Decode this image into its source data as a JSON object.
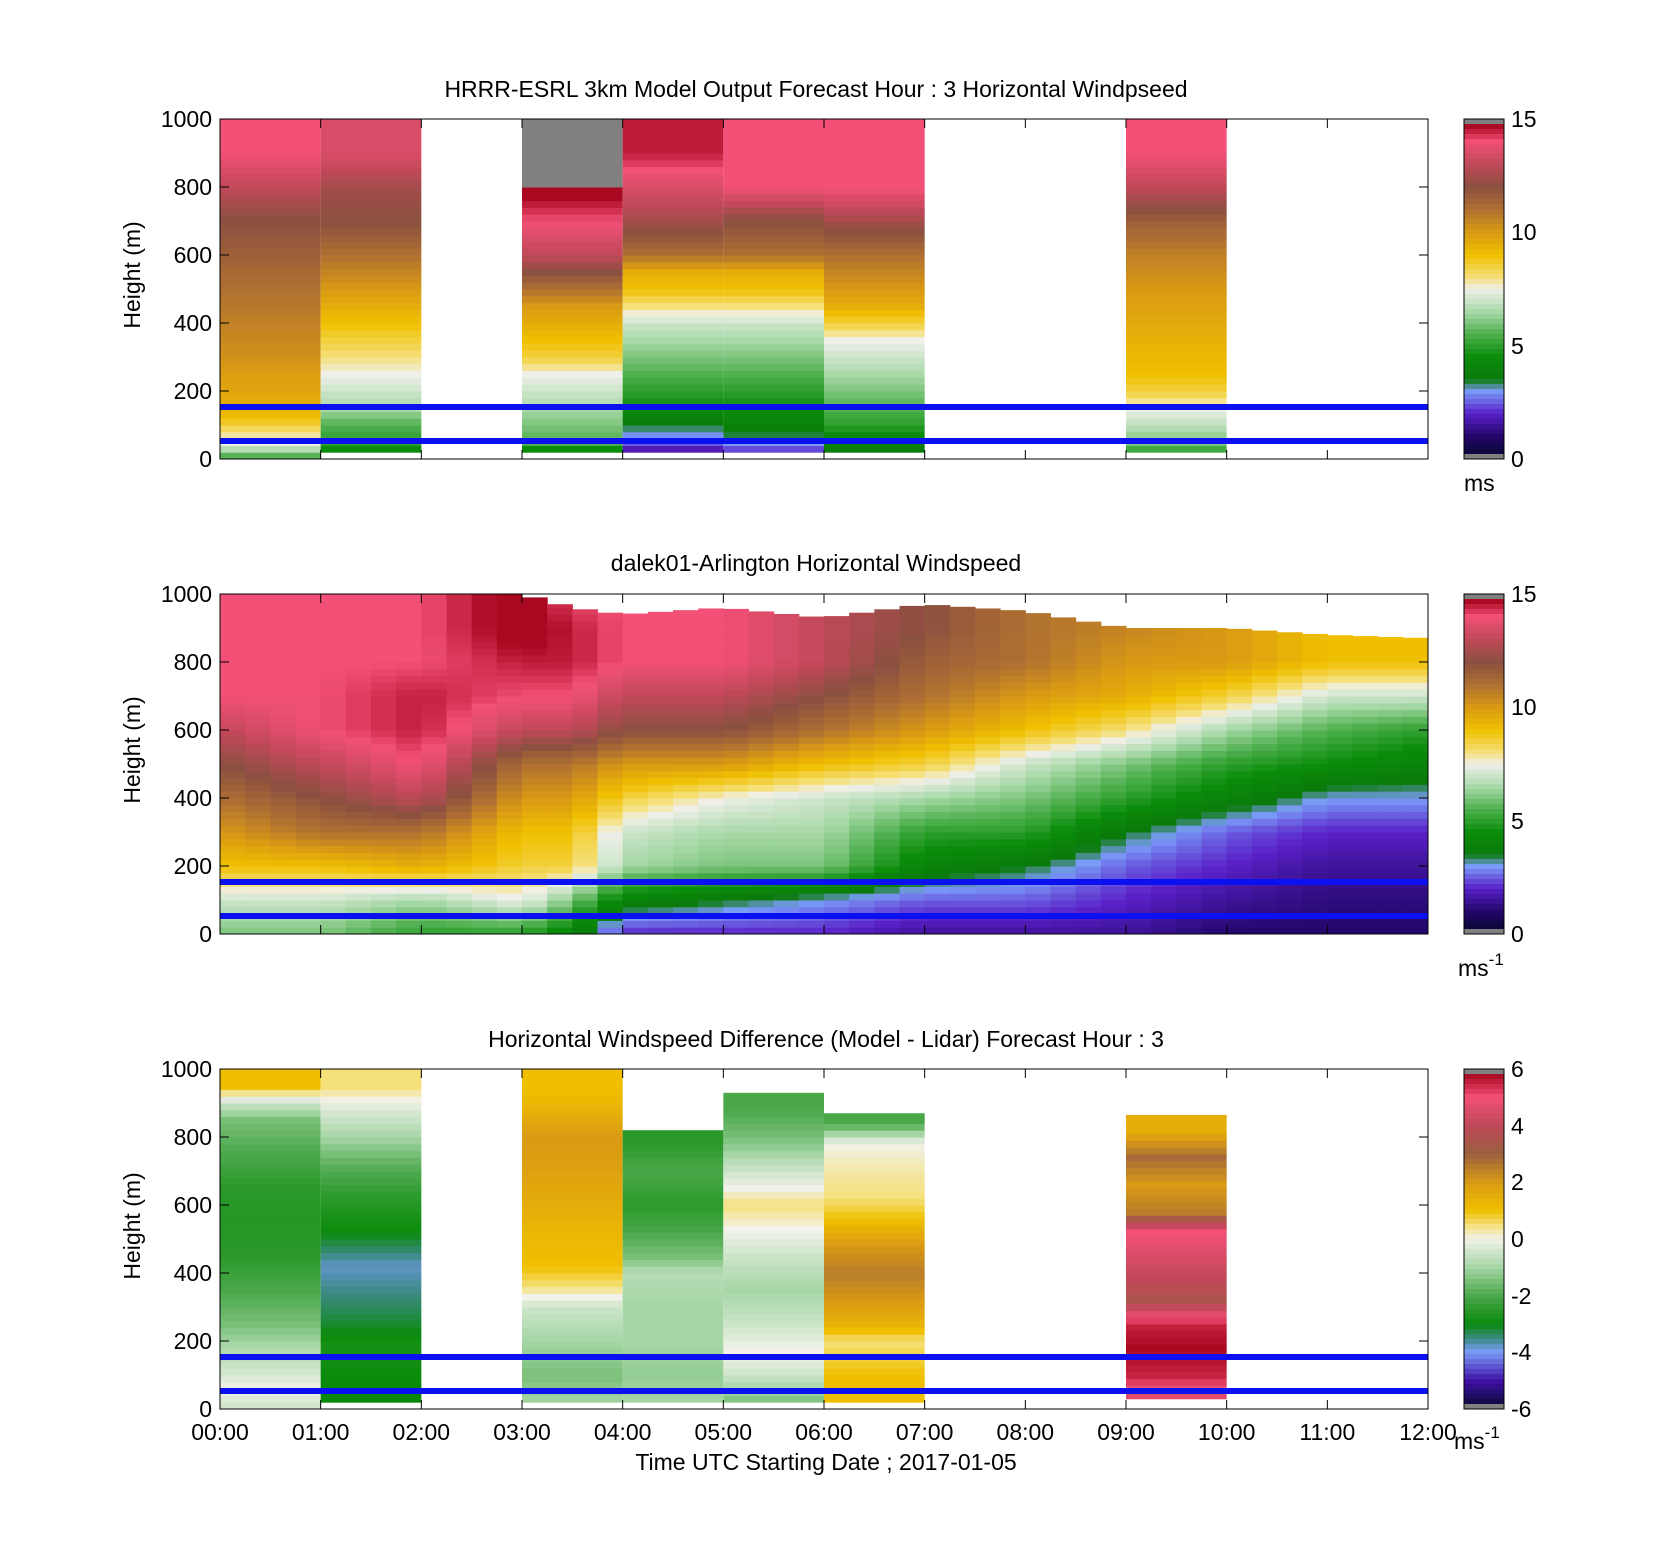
{
  "chart_data": [
    {
      "type": "heatmap",
      "title": "HRRR-ESRL 3km Model Output   Forecast Hour : 3 Horizontal Windpseed",
      "ylabel": "Height (m)",
      "ylim": [
        0,
        1000
      ],
      "yticks": [
        "0",
        "200",
        "400",
        "600",
        "800",
        "1000"
      ],
      "x_range": [
        "00:00",
        "12:00"
      ],
      "grid": false,
      "colorbar": {
        "min": 0,
        "max": 15,
        "ticks": [
          "0",
          "5",
          "10",
          "15"
        ],
        "unit": "ms",
        "unit_sup": ""
      },
      "reference_lines_m": [
        50,
        150
      ],
      "reference_line_color": "#0a10f0",
      "columns_note": "hourly columns, value in m/s per height band",
      "columns": [
        {
          "start": "00:00",
          "end": "01:00",
          "heights": [
            0,
            25,
            50,
            80,
            120,
            160,
            200,
            250,
            300,
            350,
            400,
            450,
            500,
            550,
            600,
            700,
            800,
            900
          ],
          "values": [
            5,
            6.5,
            7.5,
            8,
            9,
            9.5,
            9.7,
            9.9,
            10.2,
            10.4,
            10.6,
            10.8,
            11,
            11.2,
            11.5,
            12,
            13,
            14
          ]
        },
        {
          "start": "01:00",
          "end": "02:00",
          "heights": [
            20,
            50,
            100,
            150,
            200,
            250,
            300,
            350,
            400,
            450,
            500,
            550,
            600,
            700,
            800,
            900
          ],
          "values": [
            4,
            5,
            5.5,
            6.5,
            7,
            7.5,
            8,
            8.5,
            9,
            9.5,
            10,
            10.5,
            11,
            12,
            12.5,
            13.5
          ]
        },
        {
          "start": "03:00",
          "end": "04:00",
          "heights": [
            20,
            50,
            100,
            150,
            200,
            250,
            300,
            350,
            400,
            450,
            500,
            600,
            700,
            800,
            900
          ],
          "values": [
            4,
            5.5,
            6,
            6.5,
            7,
            7.5,
            8.5,
            9,
            9.5,
            10,
            11,
            13,
            14,
            15,
            16
          ]
        },
        {
          "start": "04:00",
          "end": "05:00",
          "heights": [
            20,
            50,
            100,
            150,
            200,
            250,
            300,
            350,
            400,
            450,
            500,
            550,
            600,
            700,
            800,
            900
          ],
          "values": [
            1.5,
            2.5,
            3.5,
            4.5,
            5,
            5.5,
            6,
            6.5,
            7,
            8,
            9,
            9.5,
            11,
            12.5,
            13.5,
            14.5
          ]
        },
        {
          "start": "05:00",
          "end": "06:00",
          "heights": [
            20,
            50,
            100,
            150,
            200,
            250,
            300,
            350,
            400,
            450,
            500,
            550,
            600,
            700,
            800,
            900
          ],
          "values": [
            2,
            3,
            4,
            4.5,
            5,
            5.5,
            6,
            6.5,
            7,
            8,
            9,
            9.5,
            11,
            12,
            14,
            14
          ]
        },
        {
          "start": "06:00",
          "end": "07:00",
          "heights": [
            20,
            50,
            100,
            150,
            200,
            250,
            300,
            350,
            400,
            450,
            500,
            550,
            600,
            700,
            800,
            900
          ],
          "values": [
            3.5,
            4,
            5,
            5.5,
            6,
            6.5,
            7,
            7.5,
            8.5,
            9.5,
            10,
            10.5,
            11,
            12.5,
            14,
            14
          ]
        },
        {
          "start": "09:00",
          "end": "10:00",
          "heights": [
            20,
            50,
            100,
            150,
            200,
            250,
            300,
            350,
            400,
            450,
            500,
            550,
            600,
            700,
            800,
            900
          ],
          "values": [
            5,
            6,
            6.8,
            7.5,
            8.5,
            9,
            9.2,
            9.4,
            9.6,
            9.8,
            10,
            10.3,
            10.6,
            11.5,
            13,
            14
          ]
        }
      ]
    },
    {
      "type": "heatmap",
      "title": "dalek01-Arlington  Horizontal Windspeed",
      "ylabel": "Height (m)",
      "ylim": [
        0,
        1000
      ],
      "yticks": [
        "0",
        "200",
        "400",
        "600",
        "800",
        "1000"
      ],
      "x_range": [
        "00:00",
        "12:00"
      ],
      "grid": false,
      "colorbar": {
        "min": 0,
        "max": 15,
        "ticks": [
          "0",
          "5",
          "10",
          "15"
        ],
        "unit": "ms",
        "unit_sup": "-1"
      },
      "reference_lines_m": [
        50,
        150
      ],
      "reference_line_color": "#0a10f0",
      "profiles_note": "approximate wind speed (m/s) profile per ~15 min column; heights in m",
      "profile_heights": [
        0,
        100,
        200,
        300,
        400,
        500,
        600,
        700,
        800,
        900,
        1000
      ],
      "profiles": [
        {
          "hour": 0.0,
          "values": [
            6,
            7,
            9,
            10,
            11,
            12,
            13,
            14,
            14,
            14,
            14
          ],
          "top": 1000
        },
        {
          "hour": 1.0,
          "values": [
            6,
            7,
            9,
            11,
            12,
            13,
            14,
            14,
            14,
            14,
            14
          ],
          "top": 1000
        },
        {
          "hour": 2.0,
          "values": [
            5,
            6.5,
            9.5,
            11,
            13,
            14,
            14.5,
            14.5,
            14,
            14,
            14
          ],
          "top": 1000
        },
        {
          "hour": 3.0,
          "values": [
            5,
            7.5,
            8.5,
            9,
            10,
            11,
            13,
            14,
            14.5,
            15,
            15
          ],
          "top": 1000
        },
        {
          "hour": 3.5,
          "values": [
            4,
            6,
            8.5,
            9,
            10,
            11,
            13,
            14,
            14.5,
            14.5,
            14
          ],
          "top": 960
        },
        {
          "hour": 4.0,
          "values": [
            2,
            4,
            6.5,
            7,
            8.5,
            10,
            12,
            13,
            14,
            14,
            14
          ],
          "top": 940
        },
        {
          "hour": 5.0,
          "values": [
            2,
            3.5,
            6,
            6.5,
            7.5,
            10,
            12,
            13,
            14,
            14,
            14
          ],
          "top": 960
        },
        {
          "hour": 6.0,
          "values": [
            2,
            3,
            6,
            6.5,
            7,
            9,
            11,
            12,
            13,
            13,
            13
          ],
          "top": 930
        },
        {
          "hour": 7.0,
          "values": [
            1.5,
            2.5,
            4,
            5,
            6.5,
            8.5,
            10,
            11,
            11.5,
            12,
            12
          ],
          "top": 970
        },
        {
          "hour": 8.0,
          "values": [
            1.5,
            2.5,
            3.5,
            5,
            6,
            7,
            9,
            10,
            11,
            11,
            11
          ],
          "top": 950
        },
        {
          "hour": 9.0,
          "values": [
            1.5,
            2,
            2.5,
            3.5,
            5,
            6,
            8,
            9.5,
            10,
            10.5,
            10.5
          ],
          "top": 900
        },
        {
          "hour": 10.0,
          "values": [
            1,
            1.5,
            2,
            2.5,
            4,
            5,
            6.5,
            8.5,
            10,
            10,
            10
          ],
          "top": 900
        },
        {
          "hour": 11.0,
          "values": [
            1,
            1.2,
            1.5,
            2,
            3,
            4.5,
            5.5,
            7,
            9,
            9,
            9
          ],
          "top": 880
        },
        {
          "hour": 12.0,
          "values": [
            1,
            1.2,
            1.5,
            2,
            3,
            4,
            5,
            7,
            9,
            9,
            9
          ],
          "top": 870
        }
      ]
    },
    {
      "type": "heatmap",
      "title": "Horizontal Windspeed Difference (Model - Lidar) Forecast Hour : 3",
      "xlabel": "Time UTC  Starting Date ; 2017-01-05",
      "ylabel": "Height (m)",
      "ylim": [
        0,
        1000
      ],
      "yticks": [
        "0",
        "200",
        "400",
        "600",
        "800",
        "1000"
      ],
      "xticks": [
        "00:00",
        "01:00",
        "02:00",
        "03:00",
        "04:00",
        "05:00",
        "06:00",
        "07:00",
        "08:00",
        "09:00",
        "10:00",
        "11:00",
        "12:00"
      ],
      "grid": false,
      "colorbar": {
        "min": -6,
        "max": 6,
        "ticks": [
          "-6",
          "-4",
          "-2",
          "0",
          "2",
          "4",
          "6"
        ],
        "unit": "ms",
        "unit_sup": "-1"
      },
      "reference_lines_m": [
        50,
        150
      ],
      "reference_line_color": "#0a10f0",
      "columns_note": "hourly columns, difference in m/s per height band",
      "columns": [
        {
          "start": "00:00",
          "end": "01:00",
          "top": 1000,
          "heights": [
            0,
            60,
            120,
            190,
            250,
            350,
            450,
            550,
            650,
            750,
            850,
            900,
            950
          ],
          "values": [
            -0.5,
            0,
            -0.5,
            -1,
            -1.5,
            -2,
            -2.5,
            -2.6,
            -2.5,
            -2,
            -1.5,
            -0.5,
            1
          ]
        },
        {
          "start": "01:00",
          "end": "02:00",
          "top": 1000,
          "heights": [
            20,
            80,
            180,
            260,
            340,
            420,
            520,
            620,
            720,
            800,
            880,
            950
          ],
          "values": [
            -3,
            -3,
            -2.8,
            -3.2,
            -3.5,
            -3.8,
            -3,
            -2.5,
            -1.8,
            -1,
            -0.3,
            0.5
          ]
        },
        {
          "start": "03:00",
          "end": "04:00",
          "top": 1000,
          "heights": [
            20,
            100,
            200,
            300,
            360,
            420,
            500,
            600,
            700,
            800,
            900,
            950
          ],
          "values": [
            -1,
            -1.5,
            -1,
            -0.5,
            0.5,
            1,
            1.2,
            1.5,
            1.8,
            2,
            1.2,
            1
          ]
        },
        {
          "start": "04:00",
          "end": "05:00",
          "top": 820,
          "heights": [
            20,
            100,
            200,
            300,
            400,
            450,
            520,
            600,
            700,
            780
          ],
          "values": [
            -1,
            -1.2,
            -1,
            -1,
            -0.8,
            -1.5,
            -2,
            -2.5,
            -2,
            -2.5
          ]
        },
        {
          "start": "05:00",
          "end": "06:00",
          "top": 930,
          "heights": [
            20,
            100,
            170,
            250,
            350,
            450,
            530,
            600,
            700,
            800,
            880
          ],
          "values": [
            -1.5,
            -0.5,
            0,
            -0.5,
            -1,
            -0.5,
            0,
            0.5,
            -0.5,
            -1.5,
            -2
          ]
        },
        {
          "start": "06:00",
          "end": "07:00",
          "top": 870,
          "heights": [
            20,
            100,
            200,
            260,
            320,
            400,
            480,
            560,
            620,
            700,
            780,
            840
          ],
          "values": [
            1,
            1,
            0.5,
            1.5,
            2,
            2.5,
            2,
            1,
            0.5,
            0.3,
            0,
            -2
          ]
        },
        {
          "start": "09:00",
          "end": "10:00",
          "top": 865,
          "heights": [
            30,
            100,
            180,
            250,
            320,
            380,
            450,
            520,
            580,
            660,
            740,
            820
          ],
          "values": [
            4.5,
            5.5,
            5.8,
            5.5,
            3.5,
            4,
            4.5,
            5,
            2.5,
            2,
            2.8,
            1.5
          ]
        }
      ]
    }
  ],
  "colormaps": {
    "speed_stops": [
      {
        "v": 0,
        "c": "#05082a"
      },
      {
        "v": 1,
        "c": "#22066a"
      },
      {
        "v": 2,
        "c": "#5a20c8"
      },
      {
        "v": 3,
        "c": "#7a9cf8"
      },
      {
        "v": 3.5,
        "c": "#0a7a0a"
      },
      {
        "v": 4.5,
        "c": "#0a8c0a"
      },
      {
        "v": 5.5,
        "c": "#4fb04f"
      },
      {
        "v": 6.5,
        "c": "#a9d9a9"
      },
      {
        "v": 7.5,
        "c": "#f0f0ea"
      },
      {
        "v": 8,
        "c": "#f5e07a"
      },
      {
        "v": 9,
        "c": "#f0c000"
      },
      {
        "v": 10,
        "c": "#d99a14"
      },
      {
        "v": 11,
        "c": "#b07032"
      },
      {
        "v": 12,
        "c": "#8a5040"
      },
      {
        "v": 13,
        "c": "#c04858"
      },
      {
        "v": 14,
        "c": "#f25077"
      },
      {
        "v": 14.7,
        "c": "#a80820"
      }
    ],
    "diff_stops": [
      {
        "v": -6,
        "c": "#05082a"
      },
      {
        "v": -5,
        "c": "#4010a8"
      },
      {
        "v": -4,
        "c": "#7a9cf8"
      },
      {
        "v": -3.5,
        "c": "#3a8a80"
      },
      {
        "v": -3,
        "c": "#0a8a0a"
      },
      {
        "v": -2,
        "c": "#4aa84a"
      },
      {
        "v": -1,
        "c": "#a6d6a6"
      },
      {
        "v": 0,
        "c": "#f2f2ea"
      },
      {
        "v": 0.5,
        "c": "#f5e07a"
      },
      {
        "v": 1,
        "c": "#f0c000"
      },
      {
        "v": 2,
        "c": "#d99a14"
      },
      {
        "v": 3,
        "c": "#9a6040"
      },
      {
        "v": 4,
        "c": "#c04858"
      },
      {
        "v": 5,
        "c": "#f25077"
      },
      {
        "v": 5.8,
        "c": "#a80820"
      }
    ],
    "extreme_color": "#808080"
  }
}
